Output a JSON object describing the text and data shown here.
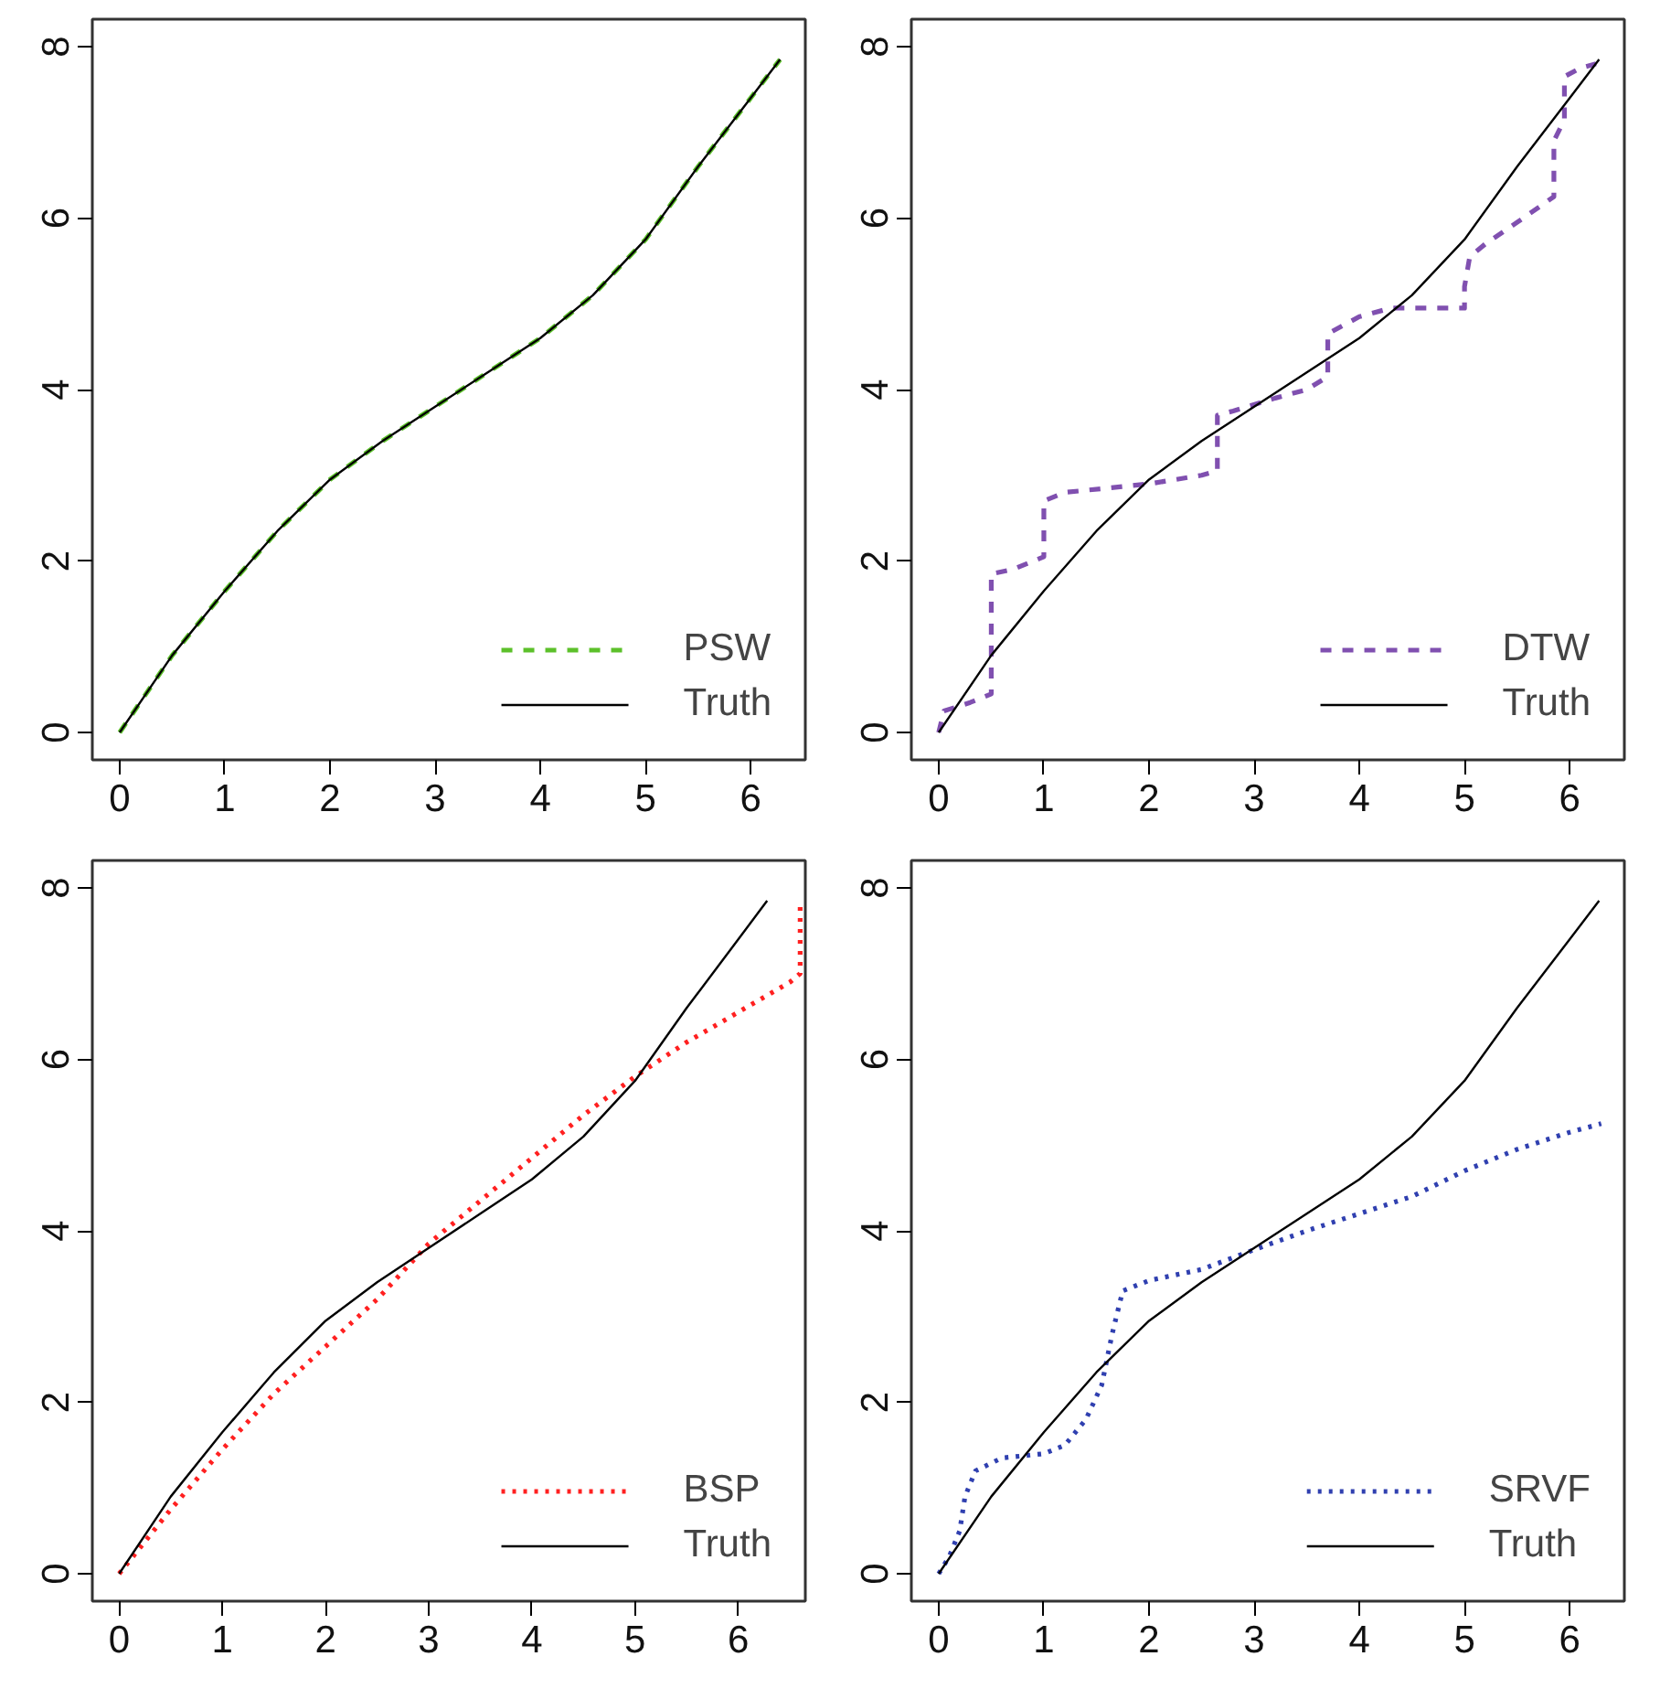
{
  "chart_data": [
    {
      "type": "line",
      "xlim": [
        -0.26,
        6.52
      ],
      "ylim": [
        -0.32,
        8.32
      ],
      "xticks": [
        0,
        1,
        2,
        3,
        4,
        5,
        6
      ],
      "yticks": [
        0,
        2,
        4,
        6,
        8
      ],
      "legend": "bottom right",
      "grid": false,
      "series": [
        {
          "name": "PSW",
          "color": "#5cc02a",
          "line_style": "dashed",
          "x": [
            0,
            0.5,
            1,
            1.5,
            2,
            2.5,
            3,
            3.5,
            4,
            4.5,
            5,
            5.5,
            6,
            6.28
          ],
          "values": [
            0,
            0.9,
            1.65,
            2.35,
            2.95,
            3.4,
            3.8,
            4.2,
            4.6,
            5.1,
            5.75,
            6.6,
            7.4,
            7.85
          ]
        },
        {
          "name": "Truth",
          "color": "#000000",
          "line_style": "solid",
          "x": [
            0,
            0.5,
            1,
            1.5,
            2,
            2.5,
            3,
            3.5,
            4,
            4.5,
            5,
            5.5,
            6,
            6.28
          ],
          "values": [
            0,
            0.9,
            1.65,
            2.35,
            2.95,
            3.4,
            3.8,
            4.2,
            4.6,
            5.1,
            5.75,
            6.6,
            7.4,
            7.85
          ]
        }
      ]
    },
    {
      "type": "line",
      "xlim": [
        -0.26,
        6.52
      ],
      "ylim": [
        -0.32,
        8.32
      ],
      "xticks": [
        0,
        1,
        2,
        3,
        4,
        5,
        6
      ],
      "yticks": [
        0,
        2,
        4,
        6,
        8
      ],
      "legend": "bottom right",
      "grid": false,
      "series": [
        {
          "name": "DTW",
          "color": "#8050b0",
          "line_style": "dashed",
          "x": [
            0,
            0.05,
            0.3,
            0.5,
            0.5,
            0.7,
            1,
            1,
            1.2,
            2,
            2.5,
            2.65,
            2.65,
            2.8,
            3.2,
            3.5,
            3.7,
            3.7,
            4.0,
            4.3,
            5.0,
            5.0,
            5.05,
            5.2,
            5.5,
            5.85,
            5.85,
            5.95,
            5.95,
            6.1,
            6.25
          ],
          "values": [
            0,
            0.25,
            0.35,
            0.45,
            1.85,
            1.9,
            2.05,
            2.7,
            2.8,
            2.9,
            3.0,
            3.05,
            3.7,
            3.75,
            3.9,
            4.0,
            4.15,
            4.65,
            4.85,
            4.95,
            4.95,
            5.2,
            5.55,
            5.7,
            5.95,
            6.25,
            6.9,
            7.15,
            7.65,
            7.75,
            7.8
          ]
        },
        {
          "name": "Truth",
          "color": "#000000",
          "line_style": "solid",
          "x": [
            0,
            0.5,
            1,
            1.5,
            2,
            2.5,
            3,
            3.5,
            4,
            4.5,
            5,
            5.5,
            6,
            6.28
          ],
          "values": [
            0,
            0.9,
            1.65,
            2.35,
            2.95,
            3.4,
            3.8,
            4.2,
            4.6,
            5.1,
            5.75,
            6.6,
            7.4,
            7.85
          ]
        }
      ]
    },
    {
      "type": "line",
      "xlim": [
        -0.26,
        6.65
      ],
      "ylim": [
        -0.32,
        8.32
      ],
      "xticks": [
        0,
        1,
        2,
        3,
        4,
        5,
        6
      ],
      "yticks": [
        0,
        2,
        4,
        6,
        8
      ],
      "legend": "bottom right",
      "grid": false,
      "series": [
        {
          "name": "BSP",
          "color": "#ff2020",
          "line_style": "dotted",
          "x": [
            0,
            0.5,
            1,
            1.5,
            2,
            2.5,
            3,
            3.5,
            4,
            4.5,
            5,
            5.5,
            6,
            6.5,
            6.6,
            6.6
          ],
          "values": [
            0,
            0.75,
            1.45,
            2.1,
            2.65,
            3.2,
            3.85,
            4.35,
            4.85,
            5.35,
            5.8,
            6.2,
            6.55,
            6.9,
            7.0,
            7.85
          ]
        },
        {
          "name": "Truth",
          "color": "#000000",
          "line_style": "solid",
          "x": [
            0,
            0.5,
            1,
            1.5,
            2,
            2.5,
            3,
            3.5,
            4,
            4.5,
            5,
            5.5,
            6,
            6.28
          ],
          "values": [
            0,
            0.9,
            1.65,
            2.35,
            2.95,
            3.4,
            3.8,
            4.2,
            4.6,
            5.1,
            5.75,
            6.6,
            7.4,
            7.85
          ]
        }
      ]
    },
    {
      "type": "line",
      "xlim": [
        -0.26,
        6.52
      ],
      "ylim": [
        -0.32,
        8.32
      ],
      "xticks": [
        0,
        1,
        2,
        3,
        4,
        5,
        6
      ],
      "yticks": [
        0,
        2,
        4,
        6,
        8
      ],
      "legend": "bottom right",
      "grid": false,
      "series": [
        {
          "name": "SRVF",
          "color": "#3040b0",
          "line_style": "dotted",
          "x": [
            0,
            0.1,
            0.2,
            0.25,
            0.35,
            0.6,
            1,
            1.2,
            1.4,
            1.55,
            1.65,
            1.75,
            2,
            2.5,
            3,
            3.5,
            4,
            4.5,
            5,
            5.5,
            6,
            6.3
          ],
          "values": [
            0,
            0.2,
            0.5,
            0.9,
            1.2,
            1.35,
            1.4,
            1.5,
            1.8,
            2.2,
            2.8,
            3.3,
            3.42,
            3.55,
            3.78,
            4.0,
            4.2,
            4.4,
            4.7,
            4.95,
            5.15,
            5.25
          ]
        },
        {
          "name": "Truth",
          "color": "#000000",
          "line_style": "solid",
          "x": [
            0,
            0.5,
            1,
            1.5,
            2,
            2.5,
            3,
            3.5,
            4,
            4.5,
            5,
            5.5,
            6,
            6.28
          ],
          "values": [
            0,
            0.9,
            1.65,
            2.35,
            2.95,
            3.4,
            3.8,
            4.2,
            4.6,
            5.1,
            5.75,
            6.6,
            7.4,
            7.85
          ]
        }
      ]
    }
  ]
}
